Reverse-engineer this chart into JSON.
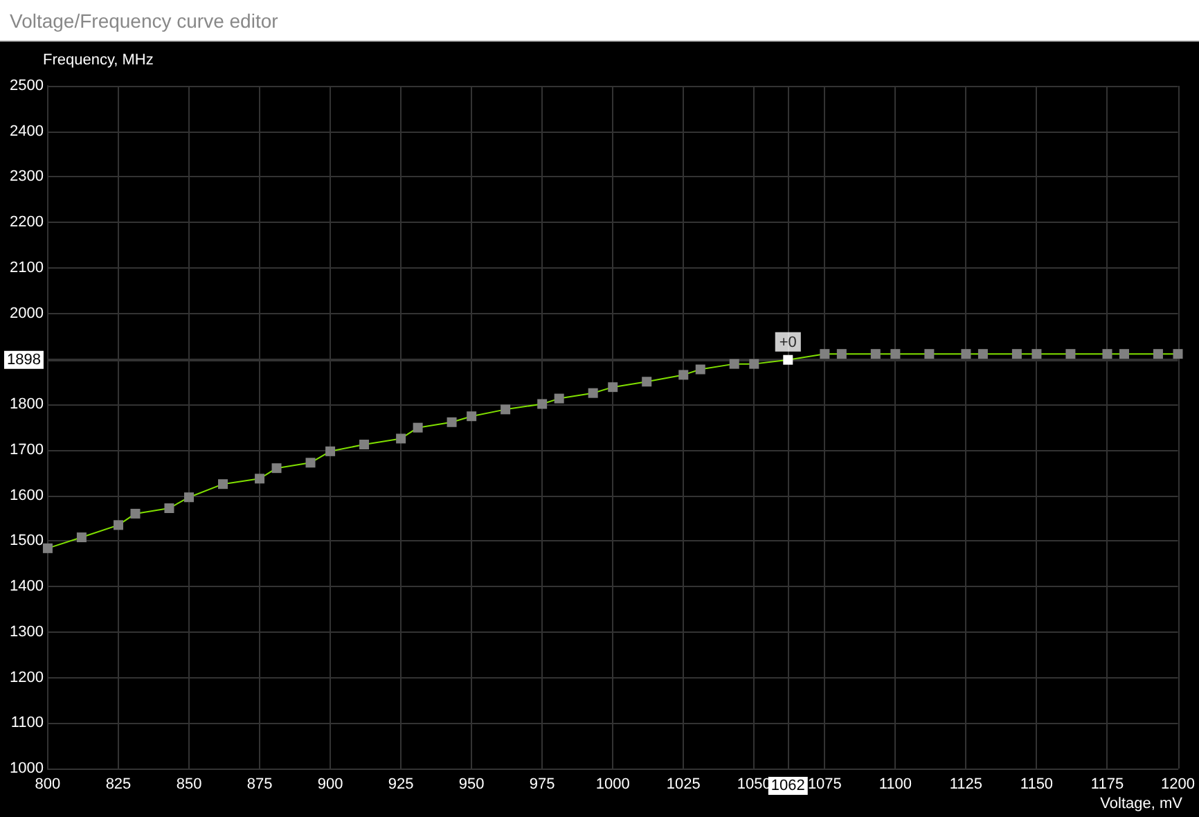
{
  "chart_data": {
    "type": "line",
    "title": "Voltage/Frequency curve editor",
    "xlabel": "Voltage, mV",
    "ylabel": "Frequency, MHz",
    "x": [
      800,
      812,
      825,
      831,
      843,
      850,
      862,
      875,
      881,
      893,
      900,
      912,
      925,
      931,
      943,
      950,
      962,
      975,
      981,
      993,
      1000,
      1012,
      1025,
      1031,
      1043,
      1050,
      1062,
      1075,
      1081,
      1093,
      1100,
      1112,
      1125,
      1131,
      1143,
      1150,
      1162,
      1175,
      1181,
      1193,
      1200
    ],
    "series": [
      {
        "color": "#80e000",
        "colors": [
          "#808080",
          "#808080",
          "#808080",
          "#808080",
          "#808080",
          "#808080",
          "#808080",
          "#808080",
          "#808080",
          "#808080",
          "#808080",
          "#808080",
          "#808080",
          "#808080",
          "#808080",
          "#808080",
          "#808080",
          "#808080",
          "#808080",
          "#808080",
          "#808080",
          "#808080",
          "#808080",
          "#808080",
          "#808080",
          "#808080",
          "#ffffff",
          "#808080",
          "#808080",
          "#808080",
          "#808080",
          "#808080",
          "#808080",
          "#808080",
          "#808080",
          "#808080",
          "#808080",
          "#808080",
          "#808080",
          "#808080",
          "#808080"
        ],
        "values": [
          1484,
          1508,
          1535,
          1560,
          1572,
          1596,
          1625,
          1637,
          1660,
          1672,
          1697,
          1712,
          1725,
          1749,
          1761,
          1774,
          1789,
          1801,
          1813,
          1825,
          1838,
          1850,
          1865,
          1877,
          1889,
          1889,
          1898,
          1911,
          1911,
          1911,
          1911,
          1911,
          1911,
          1911,
          1911,
          1911,
          1911,
          1911,
          1911,
          1911,
          1911
        ]
      }
    ],
    "annotations": [
      {
        "text": "+0",
        "x": 1062,
        "y": 1898
      }
    ],
    "xlim": [
      800,
      1200
    ],
    "ylim": [
      1000,
      2500
    ],
    "xticks": [
      800,
      825,
      850,
      875,
      900,
      925,
      950,
      975,
      1000,
      1025,
      1050,
      1062,
      1075,
      1100,
      1125,
      1150,
      1175,
      1200
    ],
    "yticks": [
      1000,
      1100,
      1200,
      1300,
      1400,
      1500,
      1600,
      1700,
      1800,
      1898,
      {
        "value": 1900,
        "label": null
      },
      2000,
      2100,
      2200,
      2300,
      2400,
      2500
    ],
    "grid": true,
    "marker": "square",
    "line_style": "solid"
  }
}
